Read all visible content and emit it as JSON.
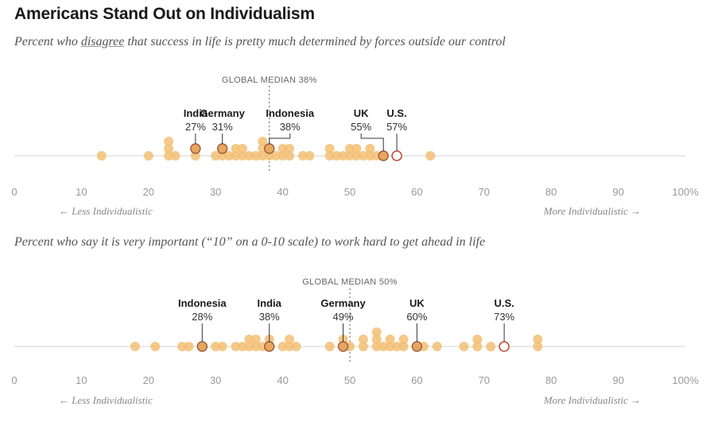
{
  "page": {
    "title": "Americans Stand Out on Individualism",
    "subtitle1_before": "Percent who ",
    "subtitle1_emph": "disagree",
    "subtitle1_after": " that success in life is pretty much determined by forces outside our control",
    "subtitle2": "Percent who say it is very important (“10” on a 0-10 scale) to work hard to get ahead in life"
  },
  "colors": {
    "dot": "#f2c074",
    "highlight_dot": "#e6a65e",
    "highlight_stroke": "#a05a3c",
    "us_stroke": "#c0503a",
    "axis": "#d0d0d0",
    "median": "#777777"
  },
  "chart_data": [
    {
      "type": "scatter",
      "title": "Percent who disagree that success in life is pretty much determined by forces outside our control",
      "xlim": [
        0,
        100
      ],
      "ticks": [
        "0",
        "10",
        "20",
        "30",
        "40",
        "50",
        "60",
        "70",
        "80",
        "90",
        "100%"
      ],
      "median_label": "GLOBAL MEDIAN 38%",
      "median": 38,
      "left_label": "← Less Individualistic",
      "right_label": "More Individualistic →",
      "points": [
        [
          13,
          0
        ],
        [
          20,
          0
        ],
        [
          23,
          0
        ],
        [
          23,
          1
        ],
        [
          23,
          2
        ],
        [
          24,
          0
        ],
        [
          27,
          0
        ],
        [
          27,
          1
        ],
        [
          30,
          0
        ],
        [
          31,
          0
        ],
        [
          31,
          1
        ],
        [
          32,
          0
        ],
        [
          33,
          0
        ],
        [
          33,
          1
        ],
        [
          34,
          0
        ],
        [
          34,
          1
        ],
        [
          35,
          0
        ],
        [
          36,
          0
        ],
        [
          37,
          0
        ],
        [
          37,
          1
        ],
        [
          37,
          2
        ],
        [
          38,
          0
        ],
        [
          39,
          0
        ],
        [
          40,
          0
        ],
        [
          40,
          1
        ],
        [
          41,
          0
        ],
        [
          41,
          1
        ],
        [
          43,
          0
        ],
        [
          44,
          0
        ],
        [
          47,
          0
        ],
        [
          47,
          1
        ],
        [
          48,
          0
        ],
        [
          49,
          0
        ],
        [
          50,
          0
        ],
        [
          50,
          1
        ],
        [
          51,
          0
        ],
        [
          51,
          1
        ],
        [
          52,
          0
        ],
        [
          53,
          0
        ],
        [
          53,
          1
        ],
        [
          54,
          0
        ],
        [
          55,
          0
        ],
        [
          57,
          0
        ],
        [
          62,
          0
        ]
      ],
      "highlights": [
        {
          "name": "India",
          "value": 27,
          "label": "27%",
          "stack": 1
        },
        {
          "name": "Germany",
          "value": 31,
          "label": "31%",
          "stack": 1
        },
        {
          "name": "Indonesia",
          "value": 38,
          "label": "38%",
          "stack": 1
        },
        {
          "name": "UK",
          "value": 55,
          "label": "55%",
          "stack": 0
        },
        {
          "name": "U.S.",
          "value": 57,
          "label": "57%",
          "stack": 0,
          "us": true
        }
      ]
    },
    {
      "type": "scatter",
      "title": "Percent who say it is very important (“10” on a 0-10 scale) to work hard to get ahead in life",
      "xlim": [
        0,
        100
      ],
      "ticks": [
        "0",
        "10",
        "20",
        "30",
        "40",
        "50",
        "60",
        "70",
        "80",
        "90",
        "100%"
      ],
      "median_label": "GLOBAL MEDIAN 50%",
      "median": 50,
      "left_label": "← Less Individualistic",
      "right_label": "More Individualistic →",
      "points": [
        [
          18,
          0
        ],
        [
          21,
          0
        ],
        [
          25,
          0
        ],
        [
          26,
          0
        ],
        [
          28,
          0
        ],
        [
          30,
          0
        ],
        [
          31,
          0
        ],
        [
          33,
          0
        ],
        [
          34,
          0
        ],
        [
          35,
          0
        ],
        [
          35,
          1
        ],
        [
          36,
          0
        ],
        [
          36,
          1
        ],
        [
          37,
          0
        ],
        [
          38,
          0
        ],
        [
          38,
          1
        ],
        [
          40,
          0
        ],
        [
          41,
          0
        ],
        [
          41,
          1
        ],
        [
          42,
          0
        ],
        [
          47,
          0
        ],
        [
          49,
          0
        ],
        [
          49,
          1
        ],
        [
          50,
          0
        ],
        [
          52,
          0
        ],
        [
          52,
          1
        ],
        [
          54,
          0
        ],
        [
          54,
          1
        ],
        [
          54,
          2
        ],
        [
          55,
          0
        ],
        [
          56,
          0
        ],
        [
          56,
          1
        ],
        [
          57,
          0
        ],
        [
          58,
          0
        ],
        [
          58,
          1
        ],
        [
          60,
          0
        ],
        [
          61,
          0
        ],
        [
          63,
          0
        ],
        [
          67,
          0
        ],
        [
          69,
          0
        ],
        [
          69,
          1
        ],
        [
          71,
          0
        ],
        [
          73,
          0
        ],
        [
          78,
          0
        ],
        [
          78,
          1
        ]
      ],
      "highlights": [
        {
          "name": "Indonesia",
          "value": 28,
          "label": "28%",
          "stack": 0
        },
        {
          "name": "India",
          "value": 38,
          "label": "38%",
          "stack": 0
        },
        {
          "name": "Germany",
          "value": 49,
          "label": "49%",
          "stack": 0
        },
        {
          "name": "UK",
          "value": 60,
          "label": "60%",
          "stack": 0
        },
        {
          "name": "U.S.",
          "value": 73,
          "label": "73%",
          "stack": 0,
          "us": true
        }
      ]
    }
  ]
}
